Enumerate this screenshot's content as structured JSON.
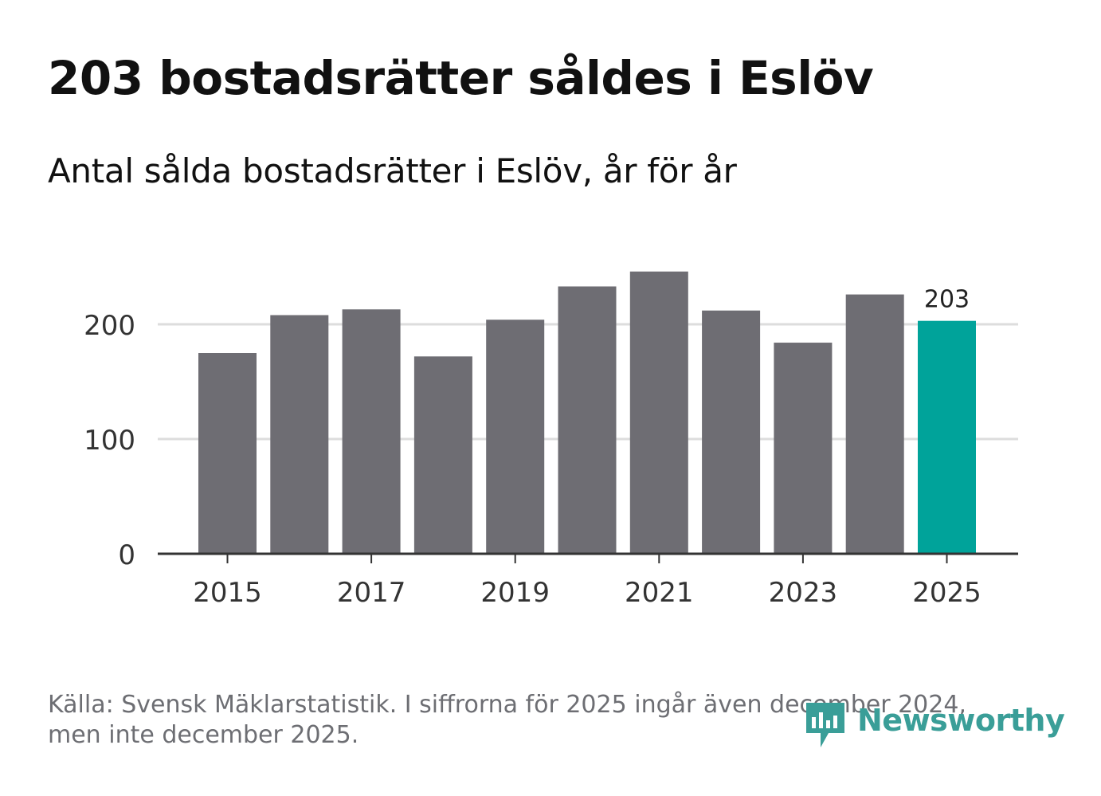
{
  "header": {
    "title": "203 bostadsrätter såldes i Eslöv",
    "subtitle": "Antal sålda bostadsrätter i Eslöv, år för år"
  },
  "footer": {
    "source": "Källa: Svensk Mäklarstatistik. I siffrorna för 2025 ingår även december 2024, men inte december 2025."
  },
  "logo": {
    "text": "Newsworthy",
    "icon": "newsworthy-logo-icon",
    "color": "#3a9e98"
  },
  "colors": {
    "bar": "#6e6d73",
    "highlight": "#00a39a",
    "grid": "#dddddd",
    "axis": "#333333",
    "tick_text": "#333333",
    "label_text": "#222222"
  },
  "chart_data": {
    "type": "bar",
    "title": "203 bostadsrätter såldes i Eslöv",
    "subtitle": "Antal sålda bostadsrätter i Eslöv, år för år",
    "xlabel": "",
    "ylabel": "",
    "categories": [
      "2015",
      "2016",
      "2017",
      "2018",
      "2019",
      "2020",
      "2021",
      "2022",
      "2023",
      "2024",
      "2025"
    ],
    "values": [
      175,
      208,
      213,
      172,
      204,
      233,
      246,
      212,
      184,
      226,
      203
    ],
    "ylim": [
      0,
      250
    ],
    "yticks": [
      0,
      100,
      200
    ],
    "xtick_labels": [
      "2015",
      "2017",
      "2019",
      "2021",
      "2023",
      "2025"
    ],
    "highlight_index": 10,
    "data_labels": [
      {
        "index": 10,
        "text": "203"
      }
    ],
    "grid": true,
    "legend": "none"
  }
}
